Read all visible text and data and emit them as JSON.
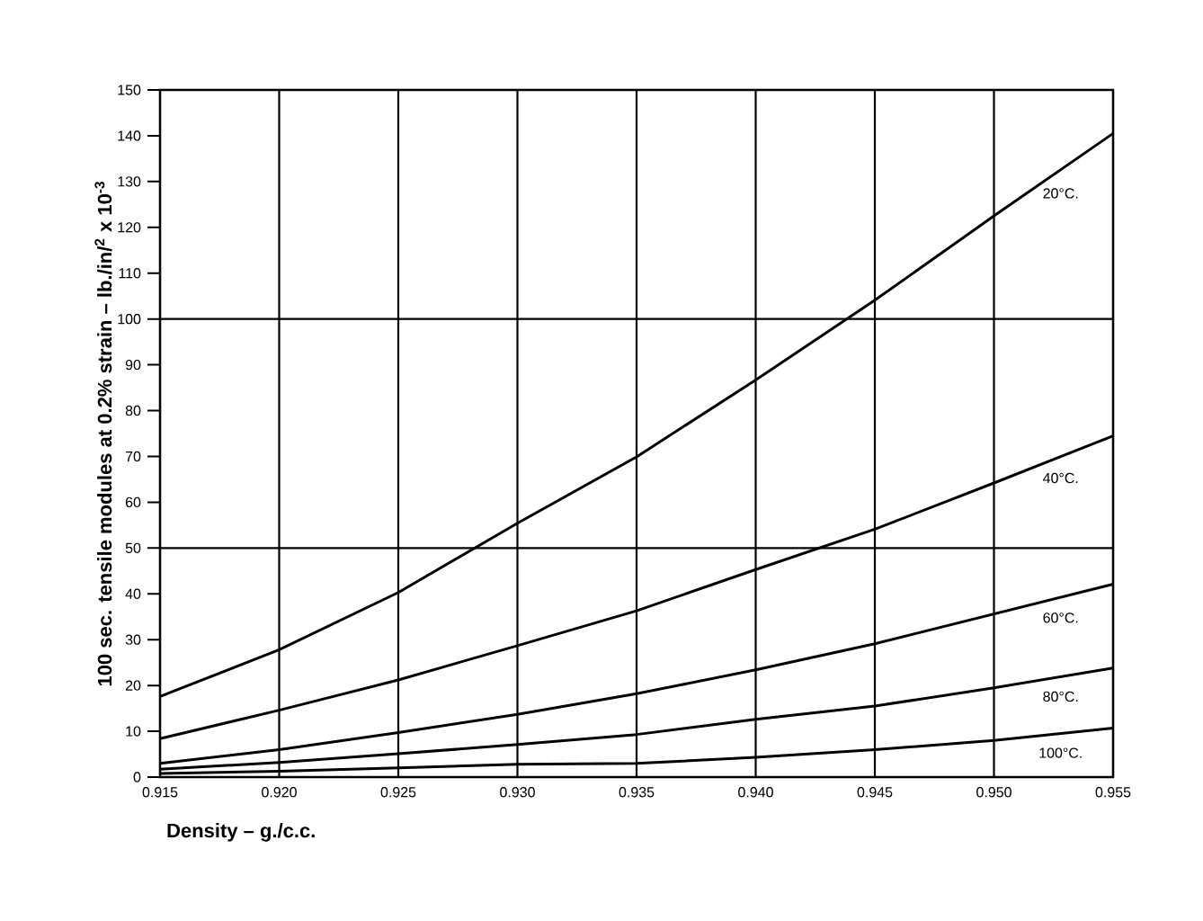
{
  "chart_data": {
    "type": "line",
    "xlabel": "Density – g./c.c.",
    "ylabel": "100 sec. tensile modules at 0.2% strain – lb./in/$^{2}$ x 10$^{-3}$",
    "x": [
      0.915,
      0.92,
      0.925,
      0.93,
      0.935,
      0.94,
      0.945,
      0.95,
      0.955
    ],
    "series": [
      {
        "name": "20°C.",
        "color": "#000000",
        "values": [
          17.6,
          27.8,
          40.3,
          55.4,
          69.9,
          86.7,
          104.1,
          122.5,
          140.5
        ]
      },
      {
        "name": "40°C.",
        "color": "#000000",
        "values": [
          8.4,
          14.6,
          21.2,
          28.7,
          36.3,
          45.3,
          54.1,
          64.2,
          74.5
        ]
      },
      {
        "name": "60°C.",
        "color": "#000000",
        "values": [
          3.0,
          6.0,
          9.7,
          13.7,
          18.2,
          23.4,
          29.1,
          35.6,
          42.1
        ]
      },
      {
        "name": "80°C.",
        "color": "#000000",
        "values": [
          1.7,
          3.2,
          5.1,
          7.1,
          9.3,
          12.6,
          15.5,
          19.5,
          23.8
        ]
      },
      {
        "name": "100°C.",
        "color": "#000000",
        "values": [
          0.8,
          1.3,
          2.0,
          2.8,
          3.0,
          4.3,
          6.0,
          8.0,
          10.7
        ]
      }
    ],
    "xlim": [
      0.915,
      0.955
    ],
    "ylim": [
      0,
      150
    ],
    "xticks": [
      {
        "value": 0.915,
        "label": "0.915"
      },
      {
        "value": 0.92,
        "label": "0.920"
      },
      {
        "value": 0.925,
        "label": "0.925"
      },
      {
        "value": 0.93,
        "label": "0.930"
      },
      {
        "value": 0.935,
        "label": "0.935"
      },
      {
        "value": 0.94,
        "label": "0.940"
      },
      {
        "value": 0.945,
        "label": "0.945"
      },
      {
        "value": 0.95,
        "label": "0.950"
      },
      {
        "value": 0.955,
        "label": "0.955"
      }
    ],
    "yticks": [
      0,
      10,
      20,
      30,
      40,
      50,
      60,
      70,
      80,
      90,
      100,
      110,
      120,
      130,
      140,
      150
    ],
    "ref_lines": [
      {
        "axis": "y",
        "value": 50,
        "color": "#000000"
      },
      {
        "axis": "y",
        "value": 100,
        "color": "#000000"
      }
    ],
    "grid": "x",
    "legend": false,
    "marker": "none",
    "line_style": "solid"
  }
}
